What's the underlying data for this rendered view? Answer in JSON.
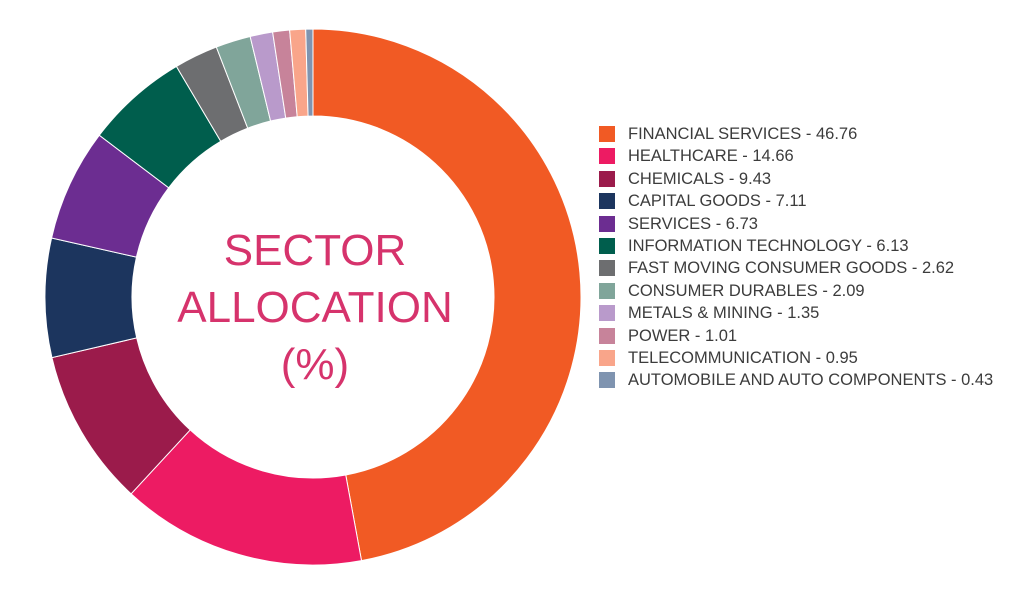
{
  "chart_data": {
    "type": "pie",
    "donut": true,
    "title": [
      "SECTOR",
      "ALLOCATION",
      "(%)"
    ],
    "legend_position": "right",
    "slices": [
      {
        "label": "FINANCIAL SERVICES - 46.76",
        "category": "FINANCIAL SERVICES",
        "value": 46.76,
        "color": "#f15a24"
      },
      {
        "label": "HEALTHCARE - 14.66",
        "category": "HEALTHCARE",
        "value": 14.66,
        "color": "#ed1b63"
      },
      {
        "label": "CHEMICALS - 9.43",
        "category": "CHEMICALS",
        "value": 9.43,
        "color": "#9b1b4b"
      },
      {
        "label": "CAPITAL GOODS - 7.11",
        "category": "CAPITAL GOODS",
        "value": 7.11,
        "color": "#1c355e"
      },
      {
        "label": "SERVICES - 6.73",
        "category": "SERVICES",
        "value": 6.73,
        "color": "#6c2d91"
      },
      {
        "label": "INFORMATION TECHNOLOGY - 6.13",
        "category": "INFORMATION TECHNOLOGY",
        "value": 6.13,
        "color": "#005e4d"
      },
      {
        "label": "FAST MOVING CONSUMER GOODS - 2.62",
        "category": "FAST MOVING CONSUMER GOODS",
        "value": 2.62,
        "color": "#6d6e70"
      },
      {
        "label": "CONSUMER DURABLES - 2.09",
        "category": "CONSUMER DURABLES",
        "value": 2.09,
        "color": "#80a59a"
      },
      {
        "label": "METALS & MINING - 1.35",
        "category": "METALS & MINING",
        "value": 1.35,
        "color": "#b99acb"
      },
      {
        "label": "POWER - 1.01",
        "category": "POWER",
        "value": 1.01,
        "color": "#c7839a"
      },
      {
        "label": "TELECOMMUNICATION - 0.95",
        "category": "TELECOMMUNICATION",
        "value": 0.95,
        "color": "#f9a58a"
      },
      {
        "label": "AUTOMOBILE AND AUTO COMPONENTS - 0.43",
        "category": "AUTOMOBILE AND AUTO COMPONENTS",
        "value": 0.43,
        "color": "#7f94b0"
      }
    ]
  }
}
